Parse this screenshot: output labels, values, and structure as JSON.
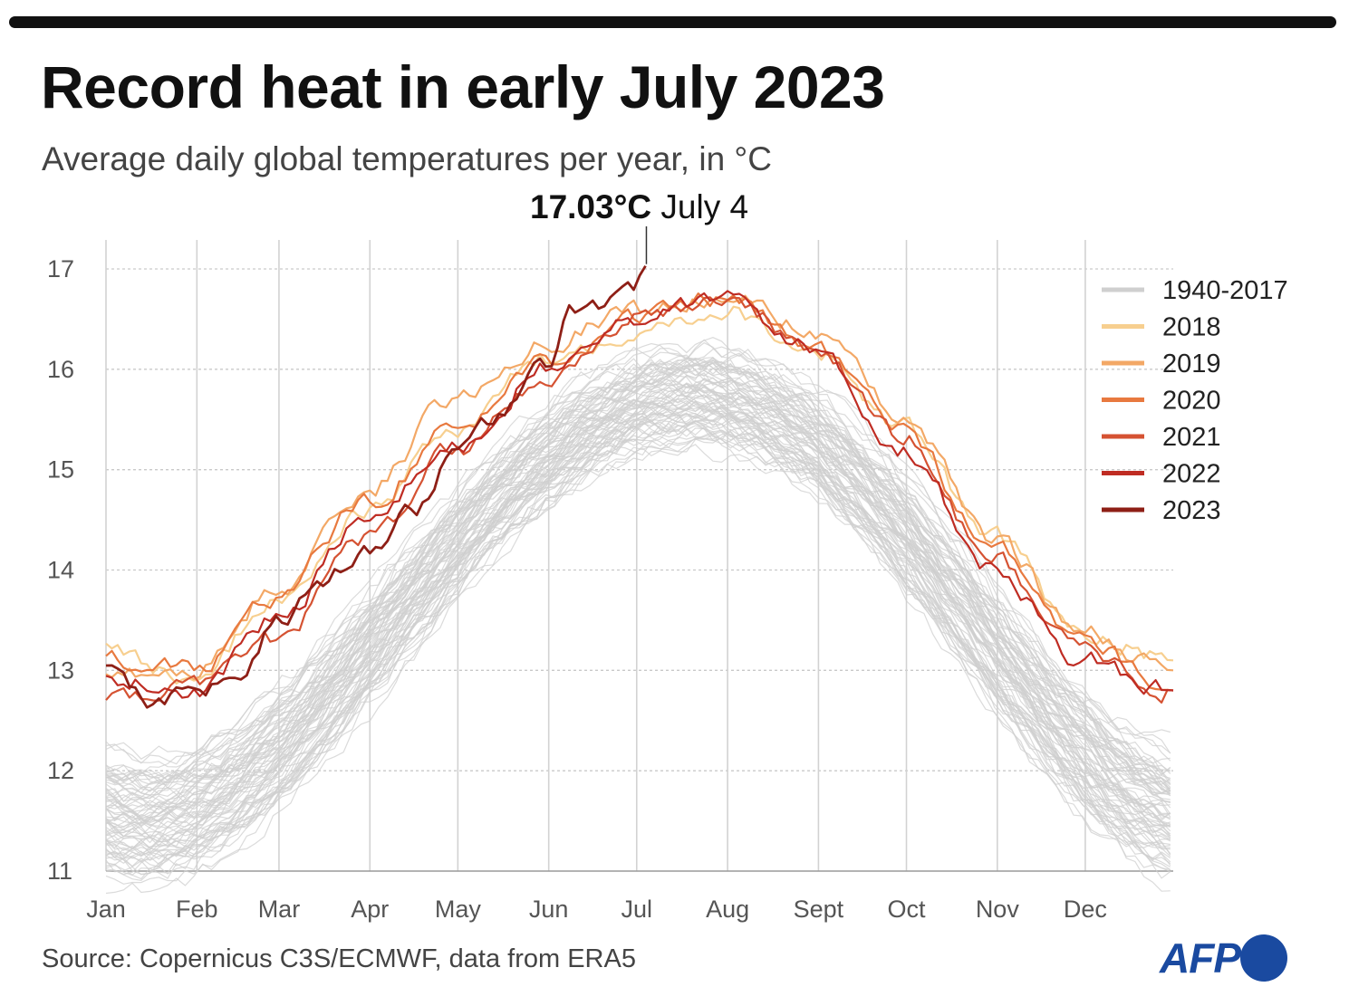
{
  "header": {
    "title": "Record heat in early July 2023",
    "subtitle": "Average daily global temperatures per year, in °C"
  },
  "annotation": {
    "value": "17.03°C",
    "date": "July 4"
  },
  "footer": {
    "source": "Source: Copernicus C3S/ECMWF, data from ERA5"
  },
  "logo": {
    "text": "AFP",
    "color": "#1a4aa0"
  },
  "chart_data": {
    "type": "line",
    "title": "Record heat in early July 2023",
    "subtitle": "Average daily global temperatures per year, in °C",
    "xlabel": "",
    "ylabel": "°C",
    "ylim": [
      11,
      17
    ],
    "yticks": [
      "17",
      "16",
      "15",
      "14",
      "13",
      "12",
      "11"
    ],
    "xticks": [
      "Jan",
      "Feb",
      "Mar",
      "Apr",
      "May",
      "Jun",
      "Jul",
      "Aug",
      "Sept",
      "Oct",
      "Nov",
      "Dec"
    ],
    "grid": true,
    "legend_position": "top-right",
    "annotation": {
      "text": "17.03°C July 4",
      "x_day": 185,
      "y": 17.03
    },
    "series": [
      {
        "name": "1940-2017",
        "color": "#cfcfcf",
        "values_approx": "band of historical years, roughly 11.5–12.8 °C in Jan/Feb rising to 15.5–16.5 °C in Jul/Aug and back to 11.5–12.8 °C in Dec"
      },
      {
        "name": "2018",
        "color": "#f7cf8f",
        "points": [
          [
            1,
            13.2
          ],
          [
            31,
            12.9
          ],
          [
            59,
            13.7
          ],
          [
            90,
            14.6
          ],
          [
            120,
            15.4
          ],
          [
            151,
            16.1
          ],
          [
            181,
            16.4
          ],
          [
            212,
            16.6
          ],
          [
            243,
            16.2
          ],
          [
            273,
            15.4
          ],
          [
            304,
            14.3
          ],
          [
            334,
            13.4
          ],
          [
            365,
            13.1
          ]
        ]
      },
      {
        "name": "2019",
        "color": "#f3a866",
        "points": [
          [
            1,
            13.0
          ],
          [
            31,
            13.0
          ],
          [
            59,
            13.8
          ],
          [
            90,
            14.8
          ],
          [
            120,
            15.7
          ],
          [
            151,
            16.3
          ],
          [
            181,
            16.6
          ],
          [
            212,
            16.7
          ],
          [
            243,
            16.4
          ],
          [
            273,
            15.5
          ],
          [
            304,
            14.3
          ],
          [
            334,
            13.4
          ],
          [
            365,
            13.0
          ]
        ]
      },
      {
        "name": "2020",
        "color": "#e8793f",
        "points": [
          [
            1,
            13.1
          ],
          [
            31,
            13.0
          ],
          [
            59,
            13.7
          ],
          [
            90,
            14.7
          ],
          [
            120,
            15.4
          ],
          [
            151,
            16.1
          ],
          [
            181,
            16.5
          ],
          [
            212,
            16.7
          ],
          [
            243,
            16.2
          ],
          [
            273,
            15.4
          ],
          [
            304,
            14.2
          ],
          [
            334,
            13.3
          ],
          [
            365,
            12.8
          ]
        ]
      },
      {
        "name": "2021",
        "color": "#d55232",
        "points": [
          [
            1,
            12.7
          ],
          [
            31,
            12.8
          ],
          [
            59,
            13.3
          ],
          [
            90,
            14.3
          ],
          [
            120,
            15.2
          ],
          [
            151,
            15.9
          ],
          [
            181,
            16.5
          ],
          [
            212,
            16.7
          ],
          [
            243,
            16.2
          ],
          [
            273,
            15.3
          ],
          [
            304,
            14.1
          ],
          [
            334,
            13.2
          ],
          [
            365,
            12.8
          ]
        ]
      },
      {
        "name": "2022",
        "color": "#bf2c23",
        "points": [
          [
            1,
            12.9
          ],
          [
            31,
            12.8
          ],
          [
            59,
            13.5
          ],
          [
            90,
            14.5
          ],
          [
            120,
            15.2
          ],
          [
            151,
            16.0
          ],
          [
            181,
            16.5
          ],
          [
            212,
            16.7
          ],
          [
            243,
            16.2
          ],
          [
            273,
            15.2
          ],
          [
            304,
            14.0
          ],
          [
            334,
            13.1
          ],
          [
            365,
            12.8
          ]
        ]
      },
      {
        "name": "2023",
        "color": "#8e1f16",
        "points": [
          [
            1,
            13.0
          ],
          [
            15,
            12.7
          ],
          [
            31,
            12.8
          ],
          [
            45,
            12.9
          ],
          [
            59,
            13.5
          ],
          [
            75,
            13.9
          ],
          [
            90,
            14.2
          ],
          [
            105,
            14.6
          ],
          [
            120,
            15.1
          ],
          [
            135,
            15.5
          ],
          [
            151,
            16.0
          ],
          [
            160,
            16.6
          ],
          [
            170,
            16.6
          ],
          [
            180,
            16.75
          ],
          [
            185,
            17.03
          ]
        ]
      }
    ]
  }
}
